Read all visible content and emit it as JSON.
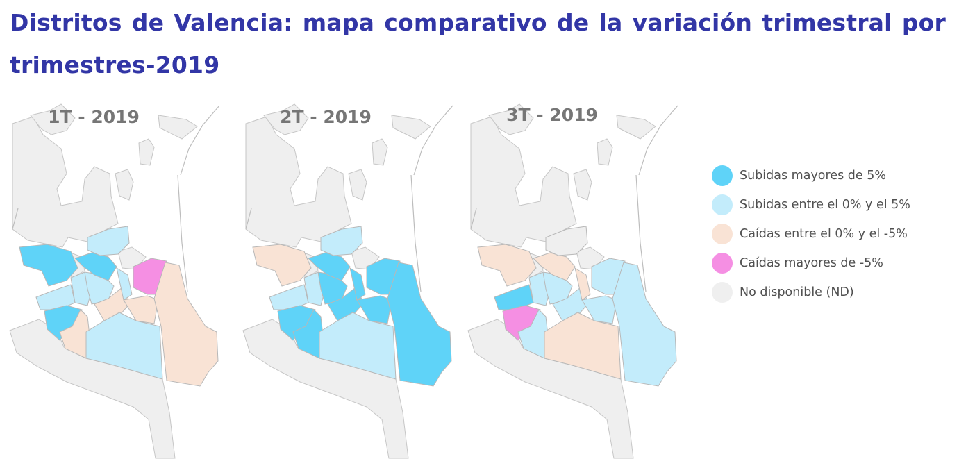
{
  "title": "Distritos de Valencia: mapa comparativo de la variación trimestral por trimestres-2019",
  "colors": {
    "subidas_mayores_5": "#5fd3f8",
    "subidas_0_5": "#c3ecfb",
    "caidas_0_5": "#f9e3d5",
    "caidas_mayores_5": "#f58fe3",
    "no_disponible": "#efefef",
    "border": "#c6c6c6"
  },
  "maps": [
    {
      "label": "1T - 2019",
      "districts": {
        "west_a": "subidas_mayores_5",
        "west_b": "subidas_0_5",
        "sw": "subidas_mayores_5",
        "ssw": "caidas_0_5",
        "center_w": "subidas_0_5",
        "center": "subidas_0_5",
        "center_n": "subidas_mayores_5",
        "north_c": "subidas_0_5",
        "center_s": "caidas_0_5",
        "east_c": "subidas_0_5",
        "east_n": "caidas_mayores_5",
        "east_s": "caidas_0_5",
        "south_big": "subidas_0_5",
        "coast": "caidas_0_5"
      }
    },
    {
      "label": "2T - 2019",
      "districts": {
        "west_a": "caidas_0_5",
        "west_b": "subidas_0_5",
        "sw": "subidas_mayores_5",
        "ssw": "subidas_mayores_5",
        "center_w": "subidas_0_5",
        "center": "subidas_mayores_5",
        "center_n": "subidas_mayores_5",
        "north_c": "subidas_0_5",
        "center_s": "subidas_mayores_5",
        "east_c": "subidas_mayores_5",
        "east_n": "subidas_mayores_5",
        "east_s": "subidas_mayores_5",
        "south_big": "subidas_0_5",
        "coast": "subidas_mayores_5"
      }
    },
    {
      "label": "3T - 2019",
      "districts": {
        "west_a": "caidas_0_5",
        "west_b": "subidas_mayores_5",
        "sw": "caidas_mayores_5",
        "ssw": "subidas_0_5",
        "center_w": "subidas_0_5",
        "center": "subidas_0_5",
        "center_n": "caidas_0_5",
        "north_c": "no_disponible",
        "center_s": "subidas_0_5",
        "east_c": "caidas_0_5",
        "east_n": "subidas_0_5",
        "east_s": "subidas_0_5",
        "south_big": "caidas_0_5",
        "coast": "subidas_0_5"
      }
    }
  ],
  "legend": [
    {
      "key": "subidas_mayores_5",
      "label": "Subidas mayores de 5%"
    },
    {
      "key": "subidas_0_5",
      "label": "Subidas entre el 0% y el 5%"
    },
    {
      "key": "caidas_0_5",
      "label": "Caídas entre el 0% y el -5%"
    },
    {
      "key": "caidas_mayores_5",
      "label": "Caídas mayores de -5%"
    },
    {
      "key": "no_disponible",
      "label": "No disponible (ND)"
    }
  ]
}
